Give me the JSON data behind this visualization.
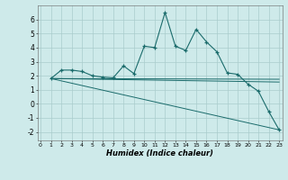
{
  "xlabel": "Humidex (Indice chaleur)",
  "bg_color": "#ceeaea",
  "grid_color": "#aacccc",
  "line_color": "#1a6b6b",
  "xlim": [
    -0.3,
    23.3
  ],
  "ylim": [
    -2.6,
    7.0
  ],
  "xticks": [
    0,
    1,
    2,
    3,
    4,
    5,
    6,
    7,
    8,
    9,
    10,
    11,
    12,
    13,
    14,
    15,
    16,
    17,
    18,
    19,
    20,
    21,
    22,
    23
  ],
  "yticks": [
    -2,
    -1,
    0,
    1,
    2,
    3,
    4,
    5,
    6
  ],
  "main_series": {
    "x": [
      1,
      2,
      3,
      4,
      5,
      6,
      7,
      8,
      9,
      10,
      11,
      12,
      13,
      14,
      15,
      16,
      17,
      18,
      19,
      20,
      21,
      22,
      23
    ],
    "y": [
      1.8,
      2.4,
      2.4,
      2.3,
      2.0,
      1.9,
      1.85,
      2.7,
      2.15,
      4.1,
      4.0,
      6.5,
      4.1,
      3.8,
      5.3,
      4.4,
      3.7,
      2.2,
      2.1,
      1.4,
      0.9,
      -0.55,
      -1.85
    ]
  },
  "trend_lines": [
    {
      "x": [
        1,
        23
      ],
      "y": [
        1.8,
        -1.85
      ]
    },
    {
      "x": [
        1,
        23
      ],
      "y": [
        1.8,
        1.55
      ]
    },
    {
      "x": [
        1,
        23
      ],
      "y": [
        1.8,
        1.75
      ]
    }
  ]
}
